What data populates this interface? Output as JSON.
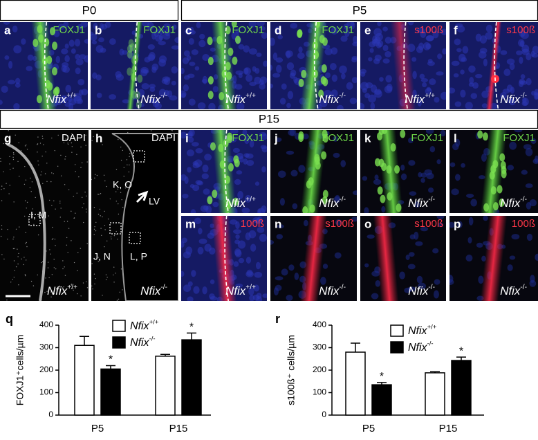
{
  "headers": {
    "p0": "P0",
    "p5": "P5",
    "p15": "P15"
  },
  "panels": [
    {
      "letter": "a",
      "stain": "FOXJ1",
      "genotype": "Nfix+/+"
    },
    {
      "letter": "b",
      "stain": "FOXJ1",
      "genotype": "Nfix-/-"
    },
    {
      "letter": "c",
      "stain": "FOXJ1",
      "genotype": "Nfix+/+"
    },
    {
      "letter": "d",
      "stain": "FOXJ1",
      "genotype": "Nfix-/-"
    },
    {
      "letter": "e",
      "stain": "s100ß",
      "genotype": "Nfix+/+"
    },
    {
      "letter": "f",
      "stain": "s100ß",
      "genotype": "Nfix-/-"
    },
    {
      "letter": "g",
      "stain": "DAPI",
      "genotype": "Nfix+/+"
    },
    {
      "letter": "h",
      "stain": "DAPI",
      "genotype": "Nfix-/-"
    },
    {
      "letter": "i",
      "stain": "FOXJ1",
      "genotype": "Nfix+/+"
    },
    {
      "letter": "j",
      "stain": "FOXJ1",
      "genotype": "Nfix-/-"
    },
    {
      "letter": "k",
      "stain": "FOXJ1",
      "genotype": "Nfix-/-"
    },
    {
      "letter": "l",
      "stain": "FOXJ1",
      "genotype": "Nfix-/-"
    },
    {
      "letter": "m",
      "stain": "100ß",
      "genotype": "Nfix+/+"
    },
    {
      "letter": "n",
      "stain": "s100ß",
      "genotype": "Nfix-/-"
    },
    {
      "letter": "o",
      "stain": "s100ß",
      "genotype": "Nfix-/-"
    },
    {
      "letter": "p",
      "stain": "100ß",
      "genotype": "Nfix-/-"
    }
  ],
  "region_labels": {
    "g": [
      "I, M"
    ],
    "h": [
      "K, O",
      "LV",
      "J, N",
      "L, P"
    ]
  },
  "chart_data": [
    {
      "type": "bar",
      "letter": "q",
      "ylabel": "FOXJ1⁺cells/µm",
      "categories": [
        "P5",
        "P15"
      ],
      "series": [
        {
          "name": "Nfix+/+",
          "color": "#ffffff",
          "values": [
            310,
            262
          ],
          "errors": [
            40,
            8
          ]
        },
        {
          "name": "Nfix-/-",
          "color": "#000000",
          "values": [
            205,
            335
          ],
          "errors": [
            15,
            30
          ],
          "significance": [
            "*",
            "*"
          ]
        }
      ],
      "ylim": [
        0,
        400
      ],
      "yticks": [
        0,
        100,
        200,
        300,
        400
      ]
    },
    {
      "type": "bar",
      "letter": "r",
      "ylabel": "s100ß⁺ cells/µm",
      "categories": [
        "P5",
        "P15"
      ],
      "series": [
        {
          "name": "Nfix+/+",
          "color": "#ffffff",
          "values": [
            280,
            188
          ],
          "errors": [
            40,
            5
          ]
        },
        {
          "name": "Nfix-/-",
          "color": "#000000",
          "values": [
            135,
            243
          ],
          "errors": [
            10,
            15
          ],
          "significance": [
            "*",
            "*"
          ]
        }
      ],
      "ylim": [
        0,
        400
      ],
      "yticks": [
        0,
        100,
        200,
        300,
        400
      ]
    }
  ]
}
